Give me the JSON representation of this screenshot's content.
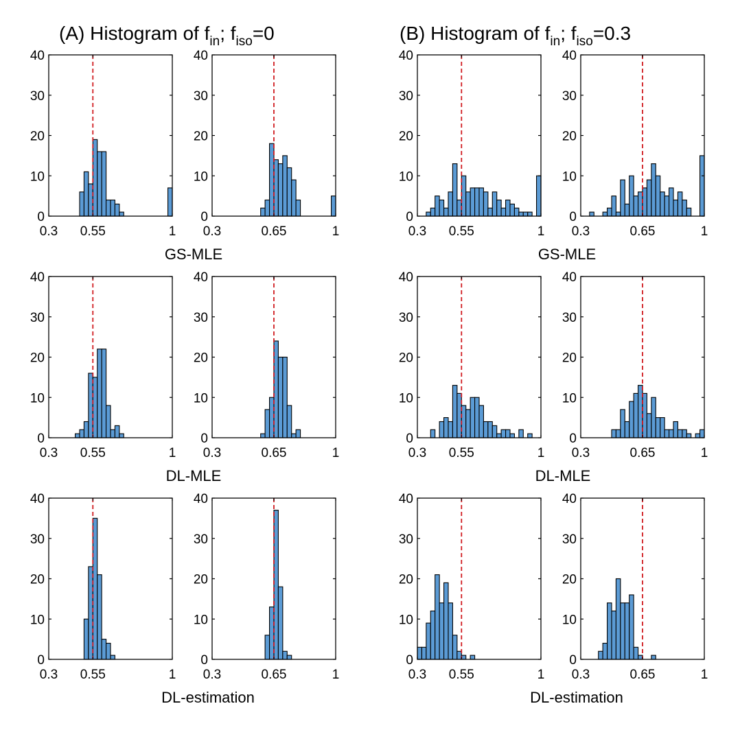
{
  "figure_titles": {
    "a": {
      "prefix": "(A) Histogram of f",
      "sub1": "in",
      "mid": "; f",
      "sub2": "iso",
      "suffix": "=0"
    },
    "b": {
      "prefix": "(B) Histogram of f",
      "sub1": "in",
      "mid": "; f",
      "sub2": "iso",
      "suffix": "=0.3"
    }
  },
  "row_labels": [
    "GS-MLE",
    "DL-MLE",
    "DL-estimation"
  ],
  "chart_data": [
    {
      "type": "bar",
      "id": "A-GS-MLE-fin055",
      "group": "A",
      "row": 0,
      "col": 0,
      "method": "GS-MLE",
      "f_iso": 0,
      "true_f_in": 0.55,
      "xlim": [
        0.3,
        1.0
      ],
      "ylim": [
        0,
        40
      ],
      "xticks": [
        0.3,
        0.55,
        1
      ],
      "xtick_labels": [
        "0.3",
        "0.55",
        "1"
      ],
      "yticks": [
        0,
        10,
        20,
        30,
        40
      ],
      "ytick_labels": [
        "0",
        "10",
        "20",
        "30",
        "40"
      ],
      "bin_width": 0.025,
      "bin_starts": [
        0.475,
        0.5,
        0.525,
        0.55,
        0.575,
        0.6,
        0.625,
        0.65,
        0.675,
        0.7,
        0.975
      ],
      "counts": [
        6,
        11,
        8,
        19,
        16,
        16,
        4,
        4,
        3,
        1,
        7
      ],
      "ref_line": 0.55
    },
    {
      "type": "bar",
      "id": "A-GS-MLE-fin065",
      "group": "A",
      "row": 0,
      "col": 1,
      "method": "GS-MLE",
      "f_iso": 0,
      "true_f_in": 0.65,
      "xlim": [
        0.3,
        1.0
      ],
      "ylim": [
        0,
        40
      ],
      "xticks": [
        0.3,
        0.65,
        1
      ],
      "xtick_labels": [
        "0.3",
        "0.65",
        "1"
      ],
      "yticks": [
        0,
        10,
        20,
        30,
        40
      ],
      "ytick_labels": [
        "0",
        "10",
        "20",
        "30",
        "40"
      ],
      "bin_width": 0.025,
      "bin_starts": [
        0.575,
        0.6,
        0.625,
        0.65,
        0.675,
        0.7,
        0.725,
        0.75,
        0.775,
        0.975
      ],
      "counts": [
        2,
        4,
        18,
        14,
        13,
        15,
        12,
        9,
        4,
        5
      ],
      "ref_line": 0.65
    },
    {
      "type": "bar",
      "id": "B-GS-MLE-fin055",
      "group": "B",
      "row": 0,
      "col": 0,
      "method": "GS-MLE",
      "f_iso": 0.3,
      "true_f_in": 0.55,
      "xlim": [
        0.3,
        1.0
      ],
      "ylim": [
        0,
        40
      ],
      "xticks": [
        0.3,
        0.55,
        1
      ],
      "xtick_labels": [
        "0.3",
        "0.55",
        "1"
      ],
      "yticks": [
        0,
        10,
        20,
        30,
        40
      ],
      "ytick_labels": [
        "0",
        "10",
        "20",
        "30",
        "40"
      ],
      "bin_width": 0.025,
      "bin_starts": [
        0.35,
        0.375,
        0.4,
        0.425,
        0.45,
        0.475,
        0.5,
        0.525,
        0.55,
        0.575,
        0.6,
        0.625,
        0.65,
        0.675,
        0.7,
        0.725,
        0.75,
        0.775,
        0.8,
        0.825,
        0.85,
        0.875,
        0.9,
        0.925,
        0.95,
        0.975
      ],
      "counts": [
        1,
        2,
        5,
        4,
        2,
        6,
        13,
        4,
        10,
        6,
        7,
        7,
        7,
        6,
        2,
        6,
        4,
        2,
        4,
        3,
        2,
        1,
        1,
        1,
        0,
        10
      ],
      "ref_line": 0.55
    },
    {
      "type": "bar",
      "id": "B-GS-MLE-fin065",
      "group": "B",
      "row": 0,
      "col": 1,
      "method": "GS-MLE",
      "f_iso": 0.3,
      "true_f_in": 0.65,
      "xlim": [
        0.3,
        1.0
      ],
      "ylim": [
        0,
        40
      ],
      "xticks": [
        0.3,
        0.65,
        1
      ],
      "xtick_labels": [
        "0.3",
        "0.65",
        "1"
      ],
      "yticks": [
        0,
        10,
        20,
        30,
        40
      ],
      "ytick_labels": [
        "0",
        "10",
        "20",
        "30",
        "40"
      ],
      "bin_width": 0.025,
      "bin_starts": [
        0.35,
        0.375,
        0.4,
        0.425,
        0.45,
        0.475,
        0.5,
        0.525,
        0.55,
        0.575,
        0.6,
        0.625,
        0.65,
        0.675,
        0.7,
        0.725,
        0.75,
        0.775,
        0.8,
        0.825,
        0.85,
        0.875,
        0.9,
        0.925,
        0.95,
        0.975
      ],
      "counts": [
        1,
        0,
        0,
        1,
        2,
        5,
        1,
        9,
        3,
        10,
        5,
        6,
        7,
        9,
        13,
        10,
        6,
        5,
        7,
        4,
        6,
        4,
        2,
        0,
        0,
        15
      ],
      "ref_line": 0.65
    },
    {
      "type": "bar",
      "id": "A-DL-MLE-fin055",
      "group": "A",
      "row": 1,
      "col": 0,
      "method": "DL-MLE",
      "f_iso": 0,
      "true_f_in": 0.55,
      "xlim": [
        0.3,
        1.0
      ],
      "ylim": [
        0,
        40
      ],
      "xticks": [
        0.3,
        0.55,
        1
      ],
      "xtick_labels": [
        "0.3",
        "0.55",
        "1"
      ],
      "yticks": [
        0,
        10,
        20,
        30,
        40
      ],
      "ytick_labels": [
        "0",
        "10",
        "20",
        "30",
        "40"
      ],
      "bin_width": 0.025,
      "bin_starts": [
        0.45,
        0.475,
        0.5,
        0.525,
        0.55,
        0.575,
        0.6,
        0.625,
        0.65,
        0.675,
        0.7
      ],
      "counts": [
        1,
        2,
        4,
        16,
        15,
        22,
        22,
        8,
        2,
        3,
        1
      ],
      "ref_line": 0.55
    },
    {
      "type": "bar",
      "id": "A-DL-MLE-fin065",
      "group": "A",
      "row": 1,
      "col": 1,
      "method": "DL-MLE",
      "f_iso": 0,
      "true_f_in": 0.65,
      "xlim": [
        0.3,
        1.0
      ],
      "ylim": [
        0,
        40
      ],
      "xticks": [
        0.3,
        0.65,
        1
      ],
      "xtick_labels": [
        "0.3",
        "0.65",
        "1"
      ],
      "yticks": [
        0,
        10,
        20,
        30,
        40
      ],
      "ytick_labels": [
        "0",
        "10",
        "20",
        "30",
        "40"
      ],
      "bin_width": 0.025,
      "bin_starts": [
        0.575,
        0.6,
        0.625,
        0.65,
        0.675,
        0.7,
        0.725,
        0.75,
        0.775
      ],
      "counts": [
        1,
        7,
        10,
        24,
        20,
        20,
        8,
        1,
        2
      ],
      "ref_line": 0.65
    },
    {
      "type": "bar",
      "id": "B-DL-MLE-fin055",
      "group": "B",
      "row": 1,
      "col": 0,
      "method": "DL-MLE",
      "f_iso": 0.3,
      "true_f_in": 0.55,
      "xlim": [
        0.3,
        1.0
      ],
      "ylim": [
        0,
        40
      ],
      "xticks": [
        0.3,
        0.55,
        1
      ],
      "xtick_labels": [
        "0.3",
        "0.55",
        "1"
      ],
      "yticks": [
        0,
        10,
        20,
        30,
        40
      ],
      "ytick_labels": [
        "0",
        "10",
        "20",
        "30",
        "40"
      ],
      "bin_width": 0.025,
      "bin_starts": [
        0.375,
        0.4,
        0.425,
        0.45,
        0.475,
        0.5,
        0.525,
        0.55,
        0.575,
        0.6,
        0.625,
        0.65,
        0.675,
        0.7,
        0.725,
        0.75,
        0.775,
        0.8,
        0.825,
        0.85,
        0.875,
        0.9,
        0.925
      ],
      "counts": [
        2,
        0,
        4,
        5,
        4,
        13,
        11,
        8,
        7,
        10,
        10,
        8,
        4,
        4,
        3,
        1,
        2,
        2,
        1,
        0,
        2,
        0,
        1
      ],
      "ref_line": 0.55
    },
    {
      "type": "bar",
      "id": "B-DL-MLE-fin065",
      "group": "B",
      "row": 1,
      "col": 1,
      "method": "DL-MLE",
      "f_iso": 0.3,
      "true_f_in": 0.65,
      "xlim": [
        0.3,
        1.0
      ],
      "ylim": [
        0,
        40
      ],
      "xticks": [
        0.3,
        0.65,
        1
      ],
      "xtick_labels": [
        "0.3",
        "0.65",
        "1"
      ],
      "yticks": [
        0,
        10,
        20,
        30,
        40
      ],
      "ytick_labels": [
        "0",
        "10",
        "20",
        "30",
        "40"
      ],
      "bin_width": 0.025,
      "bin_starts": [
        0.475,
        0.5,
        0.525,
        0.55,
        0.575,
        0.6,
        0.625,
        0.65,
        0.675,
        0.7,
        0.725,
        0.75,
        0.775,
        0.8,
        0.825,
        0.85,
        0.875,
        0.9,
        0.925,
        0.95,
        0.975
      ],
      "counts": [
        2,
        2,
        7,
        4,
        9,
        11,
        13,
        11,
        6,
        10,
        5,
        5,
        2,
        2,
        4,
        2,
        2,
        1,
        0,
        1,
        2
      ],
      "ref_line": 0.65
    },
    {
      "type": "bar",
      "id": "A-DL-estimation-fin055",
      "group": "A",
      "row": 2,
      "col": 0,
      "method": "DL-estimation",
      "f_iso": 0,
      "true_f_in": 0.55,
      "xlim": [
        0.3,
        1.0
      ],
      "ylim": [
        0,
        40
      ],
      "xticks": [
        0.3,
        0.55,
        1
      ],
      "xtick_labels": [
        "0.3",
        "0.55",
        "1"
      ],
      "yticks": [
        0,
        10,
        20,
        30,
        40
      ],
      "ytick_labels": [
        "0",
        "10",
        "20",
        "30",
        "40"
      ],
      "bin_width": 0.025,
      "bin_starts": [
        0.5,
        0.525,
        0.55,
        0.575,
        0.6,
        0.625,
        0.65
      ],
      "counts": [
        10,
        23,
        35,
        21,
        5,
        4,
        1
      ],
      "ref_line": 0.55
    },
    {
      "type": "bar",
      "id": "A-DL-estimation-fin065",
      "group": "A",
      "row": 2,
      "col": 1,
      "method": "DL-estimation",
      "f_iso": 0,
      "true_f_in": 0.65,
      "xlim": [
        0.3,
        1.0
      ],
      "ylim": [
        0,
        40
      ],
      "xticks": [
        0.3,
        0.65,
        1
      ],
      "xtick_labels": [
        "0.3",
        "0.65",
        "1"
      ],
      "yticks": [
        0,
        10,
        20,
        30,
        40
      ],
      "ytick_labels": [
        "0",
        "10",
        "20",
        "30",
        "40"
      ],
      "bin_width": 0.025,
      "bin_starts": [
        0.6,
        0.625,
        0.65,
        0.675,
        0.7,
        0.725
      ],
      "counts": [
        6,
        13,
        37,
        18,
        2,
        1
      ],
      "ref_line": 0.65
    },
    {
      "type": "bar",
      "id": "B-DL-estimation-fin055",
      "group": "B",
      "row": 2,
      "col": 0,
      "method": "DL-estimation",
      "f_iso": 0.3,
      "true_f_in": 0.55,
      "xlim": [
        0.3,
        1.0
      ],
      "ylim": [
        0,
        40
      ],
      "xticks": [
        0.3,
        0.55,
        1
      ],
      "xtick_labels": [
        "0.3",
        "0.55",
        "1"
      ],
      "yticks": [
        0,
        10,
        20,
        30,
        40
      ],
      "ytick_labels": [
        "0",
        "10",
        "20",
        "30",
        "40"
      ],
      "bin_width": 0.025,
      "bin_starts": [
        0.3,
        0.325,
        0.35,
        0.375,
        0.4,
        0.425,
        0.45,
        0.475,
        0.5,
        0.525,
        0.55,
        0.575,
        0.6
      ],
      "counts": [
        3,
        3,
        9,
        12,
        21,
        14,
        19,
        14,
        6,
        2,
        1,
        0,
        1
      ],
      "ref_line": 0.55
    },
    {
      "type": "bar",
      "id": "B-DL-estimation-fin065",
      "group": "B",
      "row": 2,
      "col": 1,
      "method": "DL-estimation",
      "f_iso": 0.3,
      "true_f_in": 0.65,
      "xlim": [
        0.3,
        1.0
      ],
      "ylim": [
        0,
        40
      ],
      "xticks": [
        0.3,
        0.65,
        1
      ],
      "xtick_labels": [
        "0.3",
        "0.65",
        "1"
      ],
      "yticks": [
        0,
        10,
        20,
        30,
        40
      ],
      "ytick_labels": [
        "0",
        "10",
        "20",
        "30",
        "40"
      ],
      "bin_width": 0.025,
      "bin_starts": [
        0.4,
        0.425,
        0.45,
        0.475,
        0.5,
        0.525,
        0.55,
        0.575,
        0.6,
        0.625,
        0.65,
        0.675,
        0.7
      ],
      "counts": [
        2,
        4,
        14,
        12,
        20,
        14,
        14,
        16,
        3,
        1,
        0,
        0,
        1
      ],
      "ref_line": 0.65
    }
  ]
}
